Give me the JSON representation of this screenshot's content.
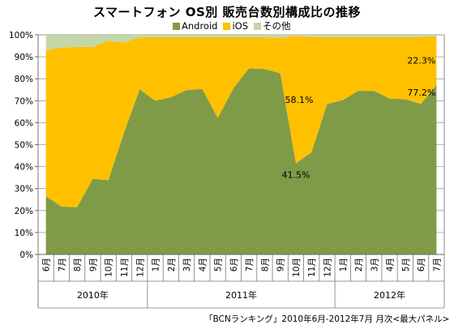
{
  "title": "スマートフォン OS別 販売台数別構成比の推移",
  "source": "「BCNランキング」2010年6月-2012年7月 月次<最大パネル>",
  "colors": {
    "android": "#7f9b48",
    "ios": "#ffc000",
    "other": "#c4d7a9"
  },
  "chart_data": {
    "type": "area",
    "stacked": true,
    "title": "スマートフォン OS別 販売台数別構成比の推移",
    "legend_position": "top",
    "grid": true,
    "ylim": [
      0,
      100
    ],
    "y_ticks": [
      "0%",
      "10%",
      "20%",
      "30%",
      "40%",
      "50%",
      "60%",
      "70%",
      "80%",
      "90%",
      "100%"
    ],
    "categories": [
      "6月",
      "7月",
      "8月",
      "9月",
      "10月",
      "11月",
      "12月",
      "1月",
      "2月",
      "3月",
      "4月",
      "5月",
      "6月",
      "7月",
      "8月",
      "9月",
      "10月",
      "11月",
      "12月",
      "1月",
      "2月",
      "3月",
      "4月",
      "5月",
      "6月",
      "7月"
    ],
    "year_groups": [
      {
        "label": "2010年",
        "start": 0,
        "end": 6
      },
      {
        "label": "2011年",
        "start": 7,
        "end": 18
      },
      {
        "label": "2012年",
        "start": 19,
        "end": 25
      }
    ],
    "series": [
      {
        "name": "Android",
        "values": [
          26.5,
          21.8,
          21.5,
          34.5,
          33.8,
          55.5,
          75.2,
          70,
          71.6,
          74.8,
          75.4,
          62.2,
          75.6,
          84.8,
          84.4,
          82.5,
          41.5,
          46.5,
          68.5,
          70.3,
          74.5,
          74.5,
          71,
          70.7,
          68.5,
          77.2
        ]
      },
      {
        "name": "iOS",
        "values": [
          66.5,
          72.5,
          73,
          60,
          63.5,
          41,
          23.8,
          29,
          27.4,
          24.2,
          23.6,
          36.8,
          23.4,
          14.2,
          14.6,
          16,
          58.1,
          52.5,
          30.5,
          28.7,
          24.5,
          24.5,
          28,
          28.3,
          30.5,
          22.3
        ]
      },
      {
        "name": "その他",
        "values": [
          7,
          5.7,
          5.5,
          5.5,
          2.7,
          3.5,
          1,
          1,
          1,
          1,
          1,
          1,
          1,
          1,
          1,
          1.5,
          0.4,
          1,
          1,
          1,
          1,
          1,
          1,
          1,
          1,
          0.5
        ]
      }
    ],
    "data_labels": [
      {
        "series": "iOS",
        "index": 16,
        "text": "58.1%"
      },
      {
        "series": "Android",
        "index": 16,
        "text": "41.5%"
      },
      {
        "series": "iOS",
        "index": 25,
        "text": "22.3%"
      },
      {
        "series": "Android",
        "index": 25,
        "text": "77.2%"
      }
    ]
  }
}
